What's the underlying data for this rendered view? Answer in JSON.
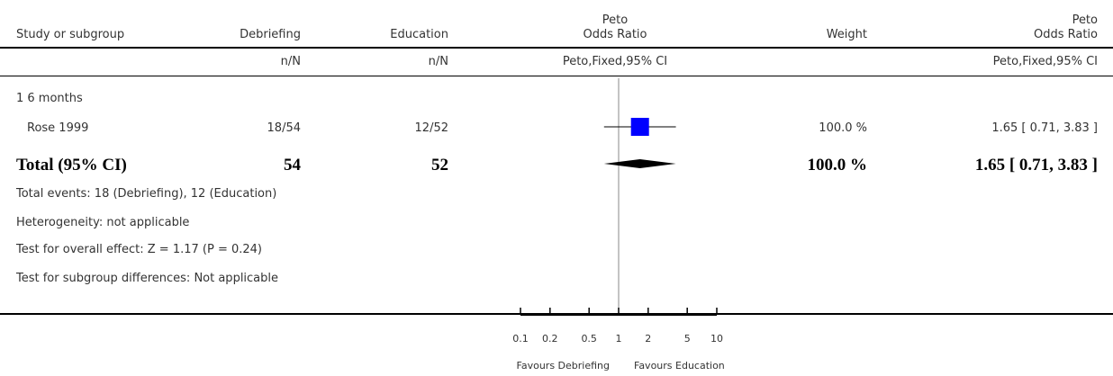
{
  "header": {
    "study_or_subgroup": "Study or subgroup",
    "group1": "Debriefing",
    "group2": "Education",
    "plot_title_line1": "Peto",
    "plot_title_line2": "Odds Ratio",
    "weight": "Weight",
    "result_title_line1": "Peto",
    "result_title_line2": "Odds Ratio",
    "group1_sub": "n/N",
    "group2_sub": "n/N",
    "plot_sub": "Peto,Fixed,95% CI",
    "result_sub": "Peto,Fixed,95% CI"
  },
  "subgroup": {
    "label": "1 6 months"
  },
  "studies": [
    {
      "name": "Rose 1999",
      "group1": "18/54",
      "group2": "12/52",
      "weight": "100.0 %",
      "ci_text": "1.65 [ 0.71, 3.83 ]"
    }
  ],
  "total": {
    "label": "Total (95% CI)",
    "group1": "54",
    "group2": "52",
    "weight": "100.0 %",
    "ci_text": "1.65 [ 0.71, 3.83 ]"
  },
  "footer": {
    "events": "Total events: 18 (Debriefing), 12 (Education)",
    "heterogeneity": "Heterogeneity: not applicable",
    "overall": "Test for overall effect: Z = 1.17 (P = 0.24)",
    "subgroup_diff": "Test for subgroup differences: Not applicable"
  },
  "axis": {
    "favours_left": "Favours Debriefing",
    "favours_right": "Favours Education"
  },
  "chart_data": {
    "type": "forest",
    "scale": "log",
    "xlim": [
      0.1,
      10
    ],
    "ticks": [
      0.1,
      0.2,
      0.5,
      1,
      2,
      5,
      10
    ],
    "tick_labels": [
      "0.1",
      "0.2",
      "0.5",
      "1",
      "2",
      "5",
      "10"
    ],
    "reference_line": 1,
    "studies": [
      {
        "name": "Rose 1999",
        "estimate": 1.65,
        "ci_low": 0.71,
        "ci_high": 3.83,
        "weight": 100.0
      }
    ],
    "pooled": {
      "estimate": 1.65,
      "ci_low": 0.71,
      "ci_high": 3.83
    },
    "colors": {
      "study_marker": "#0000ff",
      "pooled_diamond": "#000000",
      "lines": "#000000"
    }
  }
}
